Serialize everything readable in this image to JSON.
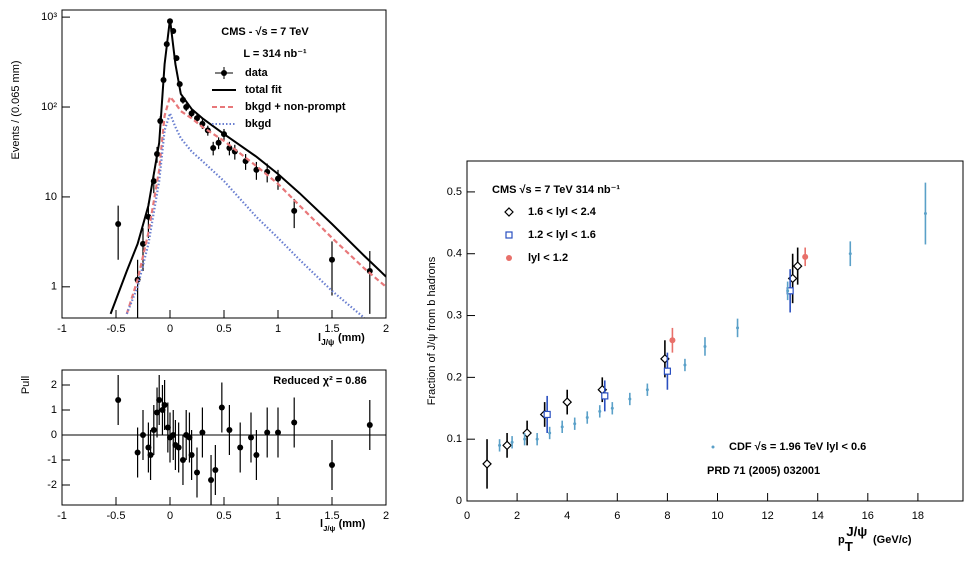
{
  "chart_data": [
    {
      "type": "line",
      "log_y": true,
      "ylabel": "Events / (0.065 mm)",
      "xlabel": {
        "base": "l",
        "sub": "J/ψ",
        "unit": "(mm)"
      },
      "xlim": [
        -1,
        2
      ],
      "ylim": [
        0.45,
        1200
      ],
      "xticks": [
        -1,
        -0.5,
        0,
        0.5,
        1,
        1.5,
        2
      ],
      "yticks": [
        1,
        10,
        {
          "value": 100,
          "label": "10²"
        },
        {
          "value": 1000,
          "label": "10³"
        }
      ],
      "annotations": [
        "CMS - √s = 7 TeV",
        "L = 314 nb⁻¹"
      ],
      "legend": "upper right",
      "series": [
        {
          "name": "data",
          "color": "#000000",
          "style": "points",
          "x": [
            -0.48,
            -0.3,
            -0.25,
            -0.2,
            -0.15,
            -0.12,
            -0.09,
            -0.06,
            -0.03,
            0,
            0.03,
            0.06,
            0.09,
            0.12,
            0.15,
            0.2,
            0.25,
            0.3,
            0.35,
            0.4,
            0.45,
            0.5,
            0.55,
            0.6,
            0.7,
            0.8,
            0.9,
            1.0,
            1.15,
            1.5,
            1.85
          ],
          "values": [
            5,
            1.2,
            3,
            6,
            15,
            30,
            70,
            200,
            500,
            900,
            700,
            350,
            180,
            120,
            100,
            85,
            75,
            65,
            55,
            35,
            40,
            50,
            35,
            32,
            25,
            20,
            19,
            16,
            7,
            2,
            1.5
          ],
          "errors": [
            3,
            0.8,
            1.5,
            2.5,
            4,
            6,
            9,
            15,
            22,
            30,
            27,
            19,
            13,
            11,
            10,
            9,
            9,
            8,
            7,
            6,
            6,
            7,
            6,
            6,
            5,
            4.5,
            4.5,
            4,
            2.5,
            1.2,
            1
          ]
        },
        {
          "name": "total fit",
          "color": "#000000",
          "style": "solid",
          "x": [
            -0.55,
            -0.4,
            -0.3,
            -0.2,
            -0.1,
            -0.05,
            0,
            0.05,
            0.1,
            0.2,
            0.3,
            0.5,
            0.8,
            1.0,
            1.2,
            1.5,
            1.8,
            2.0
          ],
          "values": [
            0.5,
            1.5,
            3,
            8,
            40,
            300,
            950,
            300,
            140,
            95,
            75,
            50,
            28,
            18,
            11,
            5,
            2.2,
            1.3
          ]
        },
        {
          "name": "bkgd + non-prompt",
          "color": "#e8787a",
          "style": "dashed",
          "x": [
            -0.55,
            -0.4,
            -0.3,
            -0.2,
            -0.1,
            -0.05,
            0,
            0.05,
            0.1,
            0.2,
            0.3,
            0.5,
            0.8,
            1.0,
            1.2,
            1.5,
            1.8,
            2.0
          ],
          "values": [
            null,
            0.5,
            1.2,
            4,
            20,
            80,
            130,
            110,
            90,
            75,
            60,
            42,
            22,
            14,
            8,
            3.5,
            1.6,
            1.0
          ]
        },
        {
          "name": "bkgd",
          "color": "#6a7fd0",
          "style": "dotted",
          "x": [
            -0.55,
            -0.4,
            -0.3,
            -0.2,
            -0.1,
            -0.05,
            0,
            0.05,
            0.1,
            0.2,
            0.3,
            0.5,
            0.8,
            1.0,
            1.2,
            1.5,
            1.8,
            2.0
          ],
          "values": [
            null,
            0.5,
            1,
            3,
            15,
            55,
            85,
            60,
            45,
            32,
            25,
            15,
            6,
            3.5,
            2,
            0.9,
            0.45,
            null
          ]
        }
      ]
    },
    {
      "type": "scatter",
      "ylabel": "Pull",
      "xlabel": {
        "base": "l",
        "sub": "J/ψ",
        "unit": "(mm)"
      },
      "xlim": [
        -1,
        2
      ],
      "ylim": [
        -2.8,
        2.6
      ],
      "xticks": [
        -1,
        -0.5,
        0,
        0.5,
        1,
        1.5,
        2
      ],
      "yticks": [
        -2,
        -1,
        0,
        1,
        2
      ],
      "annotations": [
        "Reduced χ² = 0.86"
      ],
      "hline": 0,
      "series": [
        {
          "color": "#000000",
          "marker": "circle",
          "x": [
            -0.48,
            -0.3,
            -0.25,
            -0.2,
            -0.18,
            -0.15,
            -0.12,
            -0.1,
            -0.07,
            -0.05,
            -0.02,
            0,
            0.03,
            0.05,
            0.08,
            0.12,
            0.15,
            0.18,
            0.2,
            0.25,
            0.3,
            0.38,
            0.42,
            0.48,
            0.55,
            0.65,
            0.75,
            0.8,
            0.9,
            1.0,
            1.15,
            1.5,
            1.85
          ],
          "values": [
            1.4,
            -0.7,
            0,
            -0.5,
            -0.8,
            0.2,
            0.9,
            1.4,
            1,
            1.2,
            0.3,
            -0.1,
            0,
            -0.4,
            -0.5,
            -1,
            0,
            -0.1,
            -0.8,
            -1.5,
            0.1,
            -1.8,
            -1.4,
            1.1,
            0.2,
            -0.5,
            -0.1,
            -0.8,
            0.1,
            0.1,
            0.5,
            -1.2,
            0.4
          ],
          "errors": [
            1,
            1,
            1,
            1,
            1,
            1,
            1,
            1,
            1,
            1,
            1,
            1,
            1,
            1,
            1,
            1,
            1,
            1,
            1,
            1,
            1,
            1,
            1,
            1,
            1,
            1,
            1,
            1,
            1,
            1,
            1,
            1,
            1
          ]
        }
      ]
    },
    {
      "type": "scatter",
      "title": "CMS  √s = 7 TeV   314 nb⁻¹",
      "ylabel": "Fraction of J/ψ from b hadrons",
      "xlabel": {
        "base": "p",
        "sub": "T",
        "sup": "J/ψ",
        "unit": "(GeV/c)"
      },
      "xlim": [
        0,
        19.8
      ],
      "ylim": [
        0,
        0.55
      ],
      "xticks": [
        0,
        2,
        4,
        6,
        8,
        10,
        12,
        14,
        16,
        18
      ],
      "yticks": [
        0,
        0.1,
        0.2,
        0.3,
        0.4,
        0.5
      ],
      "annotations": [
        "PRD 71 (2005) 032001"
      ],
      "series": [
        {
          "name": "1.6 < lyl < 2.4",
          "color": "#000000",
          "marker": "diamond-open",
          "x": [
            0.8,
            1.6,
            2.4,
            3.1,
            4,
            5.4,
            7.9,
            13,
            13.2
          ],
          "values": [
            0.06,
            0.09,
            0.11,
            0.14,
            0.16,
            0.18,
            0.23,
            0.36,
            0.38
          ],
          "errors": [
            0.04,
            0.02,
            0.02,
            0.02,
            0.02,
            0.02,
            0.03,
            0.04,
            0.03
          ]
        },
        {
          "name": "1.2 < lyl < 1.6",
          "color": "#2a4fc0",
          "marker": "square-open",
          "x": [
            3.2,
            5.5,
            8,
            12.9
          ],
          "values": [
            0.14,
            0.17,
            0.21,
            0.34
          ],
          "errors": [
            0.03,
            0.025,
            0.03,
            0.035
          ]
        },
        {
          "name": "lyl < 1.2",
          "color": "#e8706a",
          "marker": "circle",
          "x": [
            8.2,
            13.5
          ],
          "values": [
            0.26,
            0.395
          ],
          "errors": [
            0.02,
            0.015
          ]
        },
        {
          "name": "CDF  √s = 1.96 TeV   lyl < 0.6",
          "color": "#5aa0c8",
          "marker": "cross-small",
          "x": [
            1.3,
            1.8,
            2.3,
            2.8,
            3.3,
            3.8,
            4.3,
            4.8,
            5.3,
            5.8,
            6.5,
            7.2,
            8.7,
            9.5,
            10.8,
            12.8,
            15.3,
            18.3
          ],
          "values": [
            0.09,
            0.095,
            0.1,
            0.1,
            0.11,
            0.12,
            0.125,
            0.135,
            0.145,
            0.15,
            0.165,
            0.18,
            0.22,
            0.25,
            0.28,
            0.34,
            0.4,
            0.465
          ],
          "errors": [
            0.01,
            0.01,
            0.01,
            0.01,
            0.01,
            0.01,
            0.01,
            0.01,
            0.01,
            0.01,
            0.01,
            0.01,
            0.01,
            0.015,
            0.015,
            0.015,
            0.02,
            0.05
          ]
        }
      ]
    }
  ]
}
